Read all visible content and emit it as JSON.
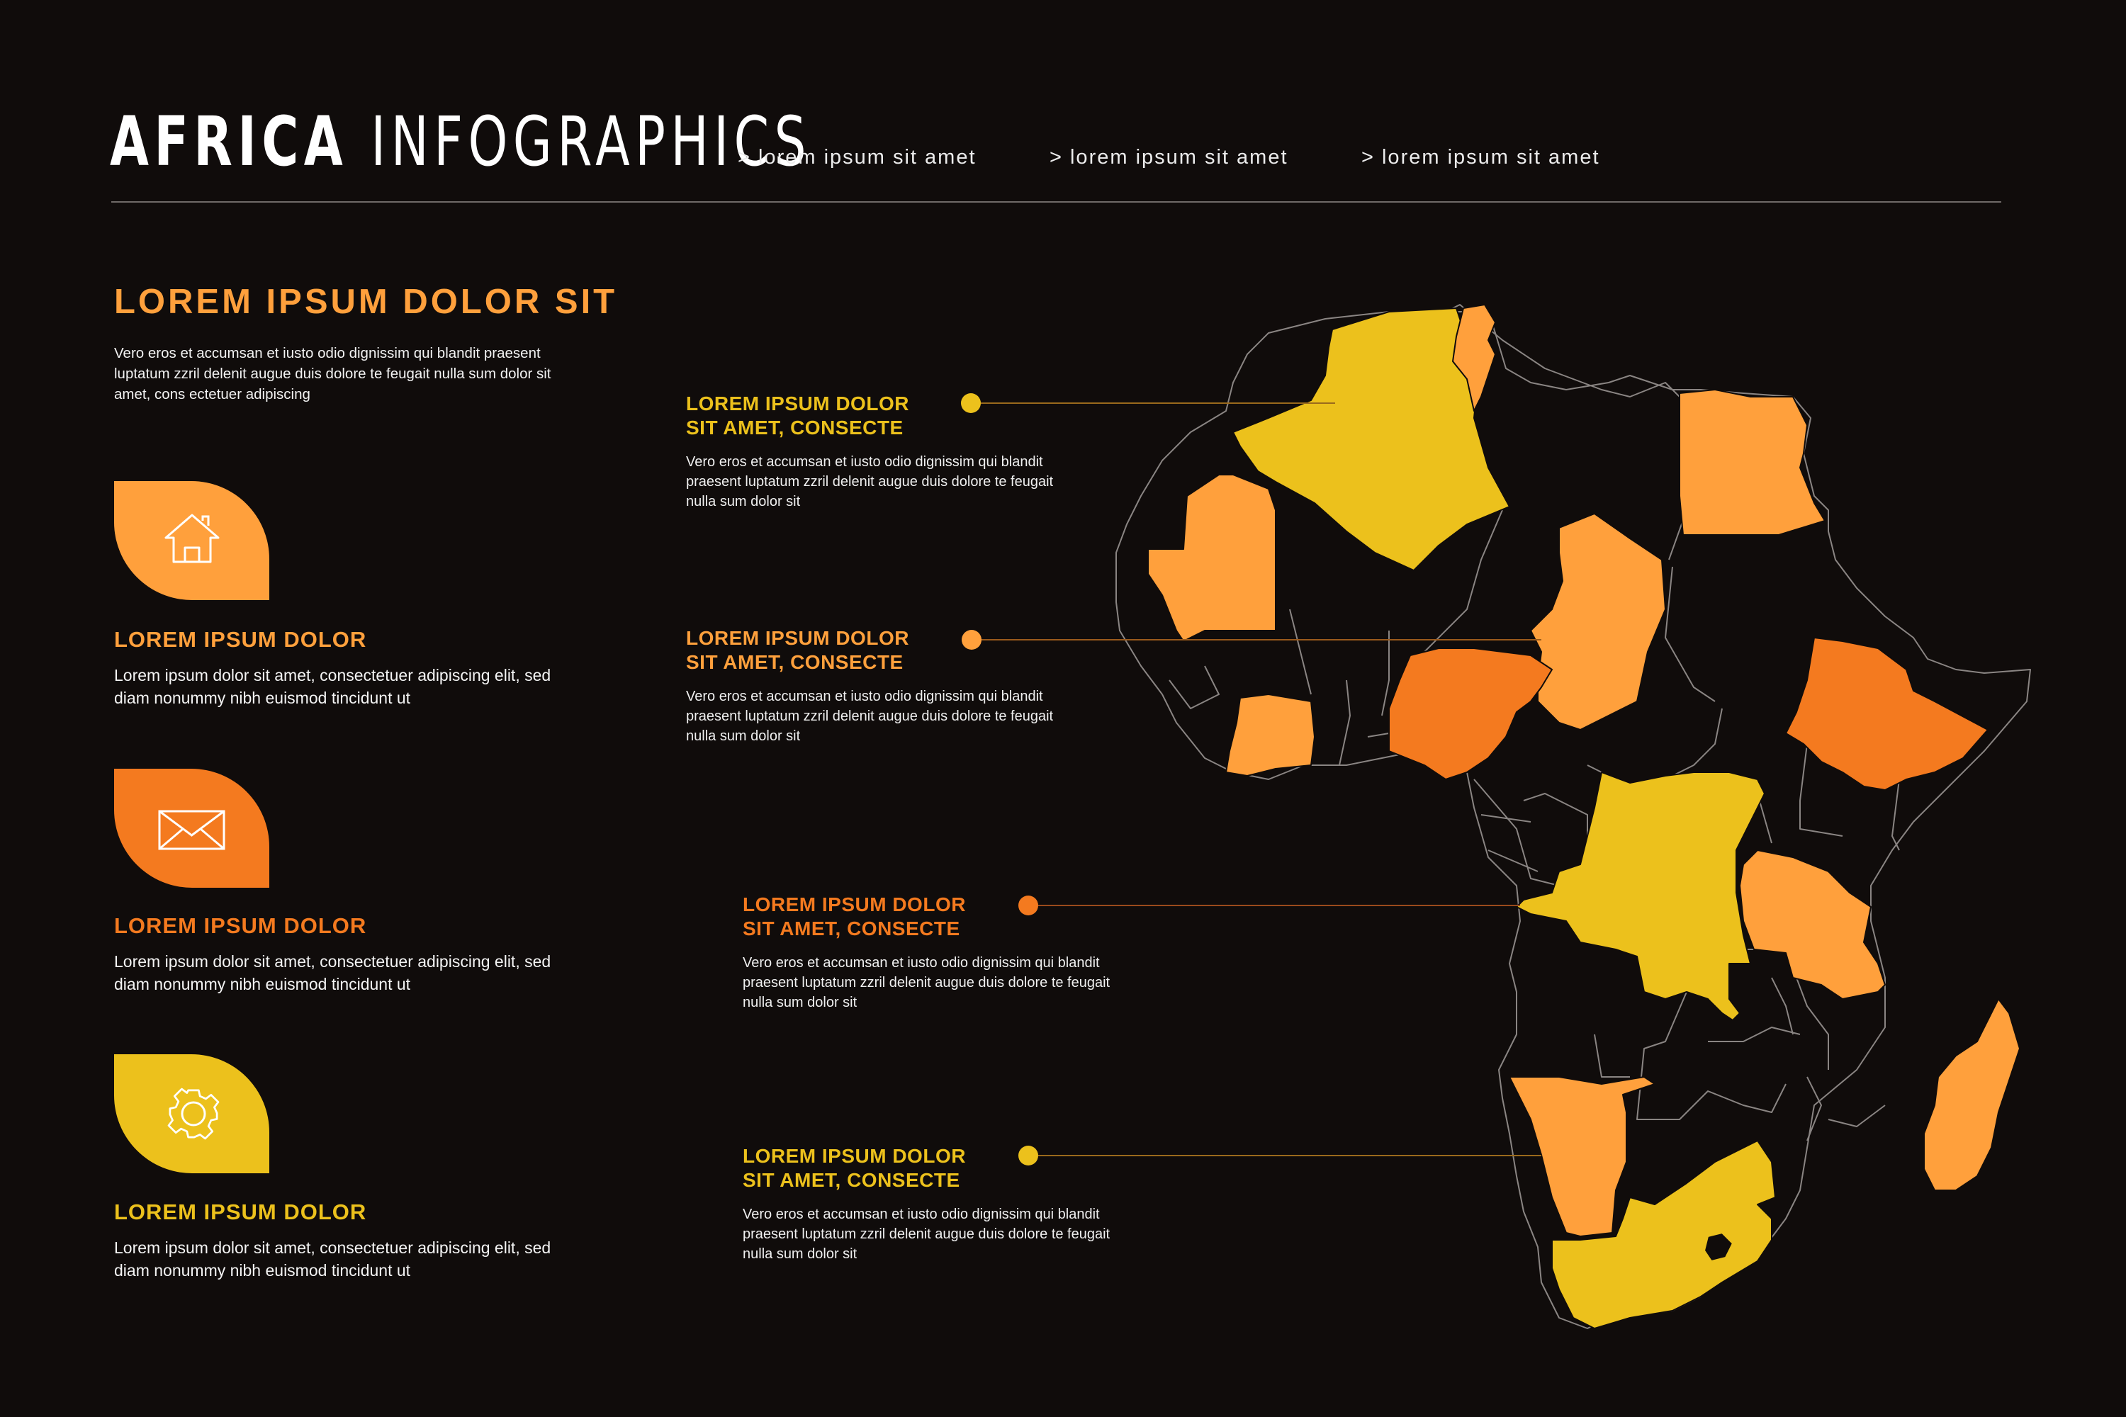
{
  "header": {
    "title_bold": "AFRICA",
    "title_light": "INFOGRAPHICS",
    "nav": [
      "> lorem ipsum sit amet",
      "> lorem ipsum sit amet",
      "> lorem ipsum sit amet"
    ]
  },
  "intro": {
    "heading": "LOREM IPSUM DOLOR SIT",
    "body": "Vero eros et accumsan et iusto odio dignissim qui blandit praesent luptatum zzril delenit augue duis dolore te feugait nulla sum dolor sit amet, cons ectetuer adipiscing"
  },
  "features": [
    {
      "icon": "house-icon",
      "color": "#ffa03c",
      "title": "LOREM IPSUM DOLOR",
      "body": "Lorem ipsum dolor sit amet, consectetuer adipiscing elit, sed diam nonummy nibh euismod tincidunt ut"
    },
    {
      "icon": "envelope-icon",
      "color": "#f47a1f",
      "title": "LOREM IPSUM DOLOR",
      "body": "Lorem ipsum dolor sit amet, consectetuer adipiscing elit, sed diam nonummy nibh euismod tincidunt ut"
    },
    {
      "icon": "gear-icon",
      "color": "#ecc11c",
      "title": "LOREM IPSUM DOLOR",
      "body": "Lorem ipsum dolor sit amet, consectetuer adipiscing elit, sed diam nonummy nibh euismod tincidunt ut"
    }
  ],
  "callouts": [
    {
      "color": "#ecc11c",
      "title_line1": "LOREM IPSUM DOLOR",
      "title_line2": "SIT AMET, CONSECTE",
      "body": "Vero eros et accumsan et iusto odio dignissim qui blandit praesent luptatum zzril delenit augue duis dolore te feugait nulla sum dolor sit"
    },
    {
      "color": "#ffa03c",
      "title_line1": "LOREM IPSUM DOLOR",
      "title_line2": "SIT AMET, CONSECTE",
      "body": "Vero eros et accumsan et iusto odio dignissim qui blandit praesent luptatum zzril delenit augue duis dolore te feugait nulla sum dolor sit"
    },
    {
      "color": "#f47a1f",
      "title_line1": "LOREM IPSUM DOLOR",
      "title_line2": "SIT AMET, CONSECTE",
      "body": "Vero eros et accumsan et iusto odio dignissim qui blandit praesent luptatum zzril delenit augue duis dolore te feugait nulla sum dolor sit"
    },
    {
      "color": "#ecc11c",
      "title_line1": "LOREM IPSUM DOLOR",
      "title_line2": "SIT AMET, CONSECTE",
      "body": "Vero eros et accumsan et iusto odio dignissim qui blandit praesent luptatum zzril delenit augue duis dolore te feugait nulla sum dolor sit"
    }
  ],
  "colors": {
    "background": "#100c0b",
    "yellow": "#ecc11c",
    "light_orange": "#ffa03c",
    "orange": "#f47a1f",
    "map_outline": "#8a8583",
    "divider": "#6f6a68"
  }
}
